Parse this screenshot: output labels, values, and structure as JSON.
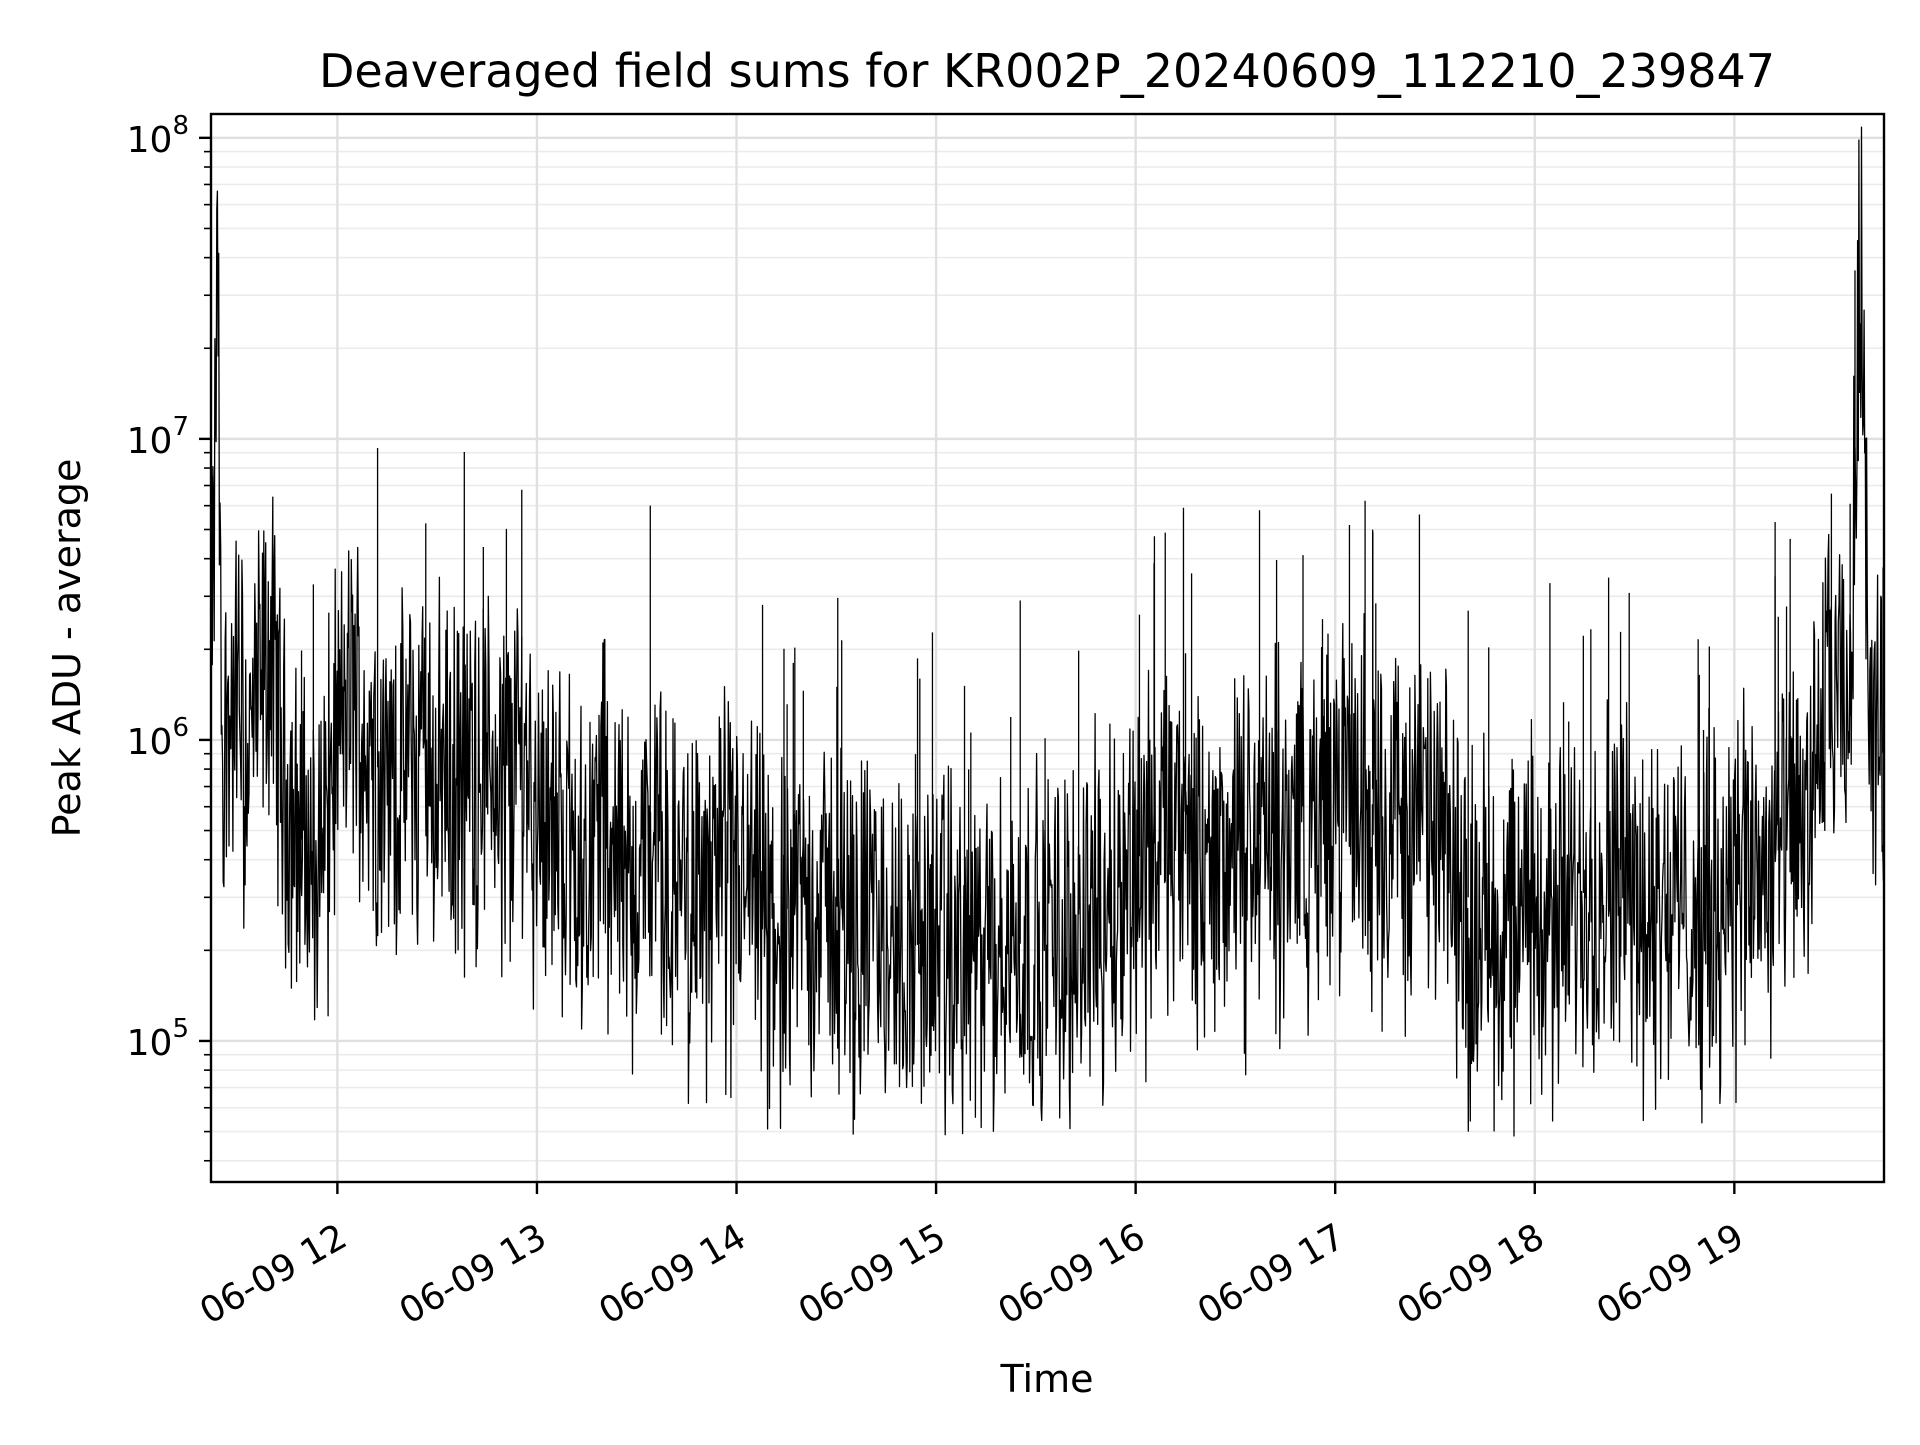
{
  "chart_data": {
    "type": "line",
    "title": "Deaveraged field sums for KR002P_20240609_112210_239847",
    "xlabel": "Time",
    "ylabel": "Peak ADU - average",
    "yscale": "log",
    "ylim": [
      34000,
      120000000
    ],
    "xlim": [
      "2024-06-09 11:22",
      "2024-06-09 19:45"
    ],
    "x_ticks": [
      {
        "label": "06-09 12",
        "time": "2024-06-09 12:00"
      },
      {
        "label": "06-09 13",
        "time": "2024-06-09 13:00"
      },
      {
        "label": "06-09 14",
        "time": "2024-06-09 14:00"
      },
      {
        "label": "06-09 15",
        "time": "2024-06-09 15:00"
      },
      {
        "label": "06-09 16",
        "time": "2024-06-09 16:00"
      },
      {
        "label": "06-09 17",
        "time": "2024-06-09 17:00"
      },
      {
        "label": "06-09 18",
        "time": "2024-06-09 18:00"
      },
      {
        "label": "06-09 19",
        "time": "2024-06-09 19:00"
      }
    ],
    "y_ticks": [
      {
        "base": "10",
        "exp": "5",
        "value": 100000
      },
      {
        "base": "10",
        "exp": "6",
        "value": 1000000
      },
      {
        "base": "10",
        "exp": "7",
        "value": 10000000
      },
      {
        "base": "10",
        "exp": "8",
        "value": 100000000
      }
    ],
    "grid": true,
    "line_color": "#000000",
    "series": [
      {
        "x": [
          "2024-06-09 11:22",
          "2024-06-09 11:23",
          "2024-06-09 11:24",
          "2024-06-09 11:25",
          "2024-06-09 11:27",
          "2024-06-09 11:30",
          "2024-06-09 11:33",
          "2024-06-09 11:36",
          "2024-06-09 11:40",
          "2024-06-09 11:44",
          "2024-06-09 11:48",
          "2024-06-09 11:52",
          "2024-06-09 11:56",
          "2024-06-09 12:00",
          "2024-06-09 12:05",
          "2024-06-09 12:10",
          "2024-06-09 12:15",
          "2024-06-09 12:20",
          "2024-06-09 12:25",
          "2024-06-09 12:30",
          "2024-06-09 12:35",
          "2024-06-09 12:40",
          "2024-06-09 12:45",
          "2024-06-09 12:50",
          "2024-06-09 12:55",
          "2024-06-09 13:00",
          "2024-06-09 13:05",
          "2024-06-09 13:10",
          "2024-06-09 13:15",
          "2024-06-09 13:20",
          "2024-06-09 13:25",
          "2024-06-09 13:30",
          "2024-06-09 13:35",
          "2024-06-09 13:40",
          "2024-06-09 13:45",
          "2024-06-09 13:50",
          "2024-06-09 13:55",
          "2024-06-09 14:00",
          "2024-06-09 14:10",
          "2024-06-09 14:20",
          "2024-06-09 14:30",
          "2024-06-09 14:40",
          "2024-06-09 14:50",
          "2024-06-09 15:00",
          "2024-06-09 15:10",
          "2024-06-09 15:20",
          "2024-06-09 15:30",
          "2024-06-09 15:40",
          "2024-06-09 15:50",
          "2024-06-09 16:00",
          "2024-06-09 16:10",
          "2024-06-09 16:20",
          "2024-06-09 16:30",
          "2024-06-09 16:40",
          "2024-06-09 16:50",
          "2024-06-09 17:00",
          "2024-06-09 17:10",
          "2024-06-09 17:20",
          "2024-06-09 17:30",
          "2024-06-09 17:40",
          "2024-06-09 17:50",
          "2024-06-09 18:00",
          "2024-06-09 18:10",
          "2024-06-09 18:20",
          "2024-06-09 18:30",
          "2024-06-09 18:40",
          "2024-06-09 18:50",
          "2024-06-09 19:00",
          "2024-06-09 19:10",
          "2024-06-09 19:20",
          "2024-06-09 19:28",
          "2024-06-09 19:35",
          "2024-06-09 19:38",
          "2024-06-09 19:41",
          "2024-06-09 19:45"
        ],
        "y": [
          1800000,
          5000000,
          50000000,
          1200000,
          1100000,
          1500000,
          900000,
          1300000,
          2000000,
          700000,
          500000,
          400000,
          600000,
          1000000,
          1500000,
          900000,
          700000,
          800000,
          1000000,
          900000,
          700000,
          800000,
          900000,
          800000,
          1000000,
          700000,
          500000,
          450000,
          400000,
          700000,
          400000,
          350000,
          500000,
          300000,
          400000,
          300000,
          400000,
          350000,
          250000,
          300000,
          280000,
          250000,
          200000,
          220000,
          180000,
          200000,
          220000,
          250000,
          300000,
          400000,
          500000,
          350000,
          450000,
          500000,
          600000,
          650000,
          700000,
          600000,
          500000,
          300000,
          250000,
          300000,
          250000,
          400000,
          350000,
          300000,
          250000,
          350000,
          400000,
          500000,
          1300000,
          1200000,
          75000000,
          1000000,
          900000
        ]
      }
    ]
  }
}
